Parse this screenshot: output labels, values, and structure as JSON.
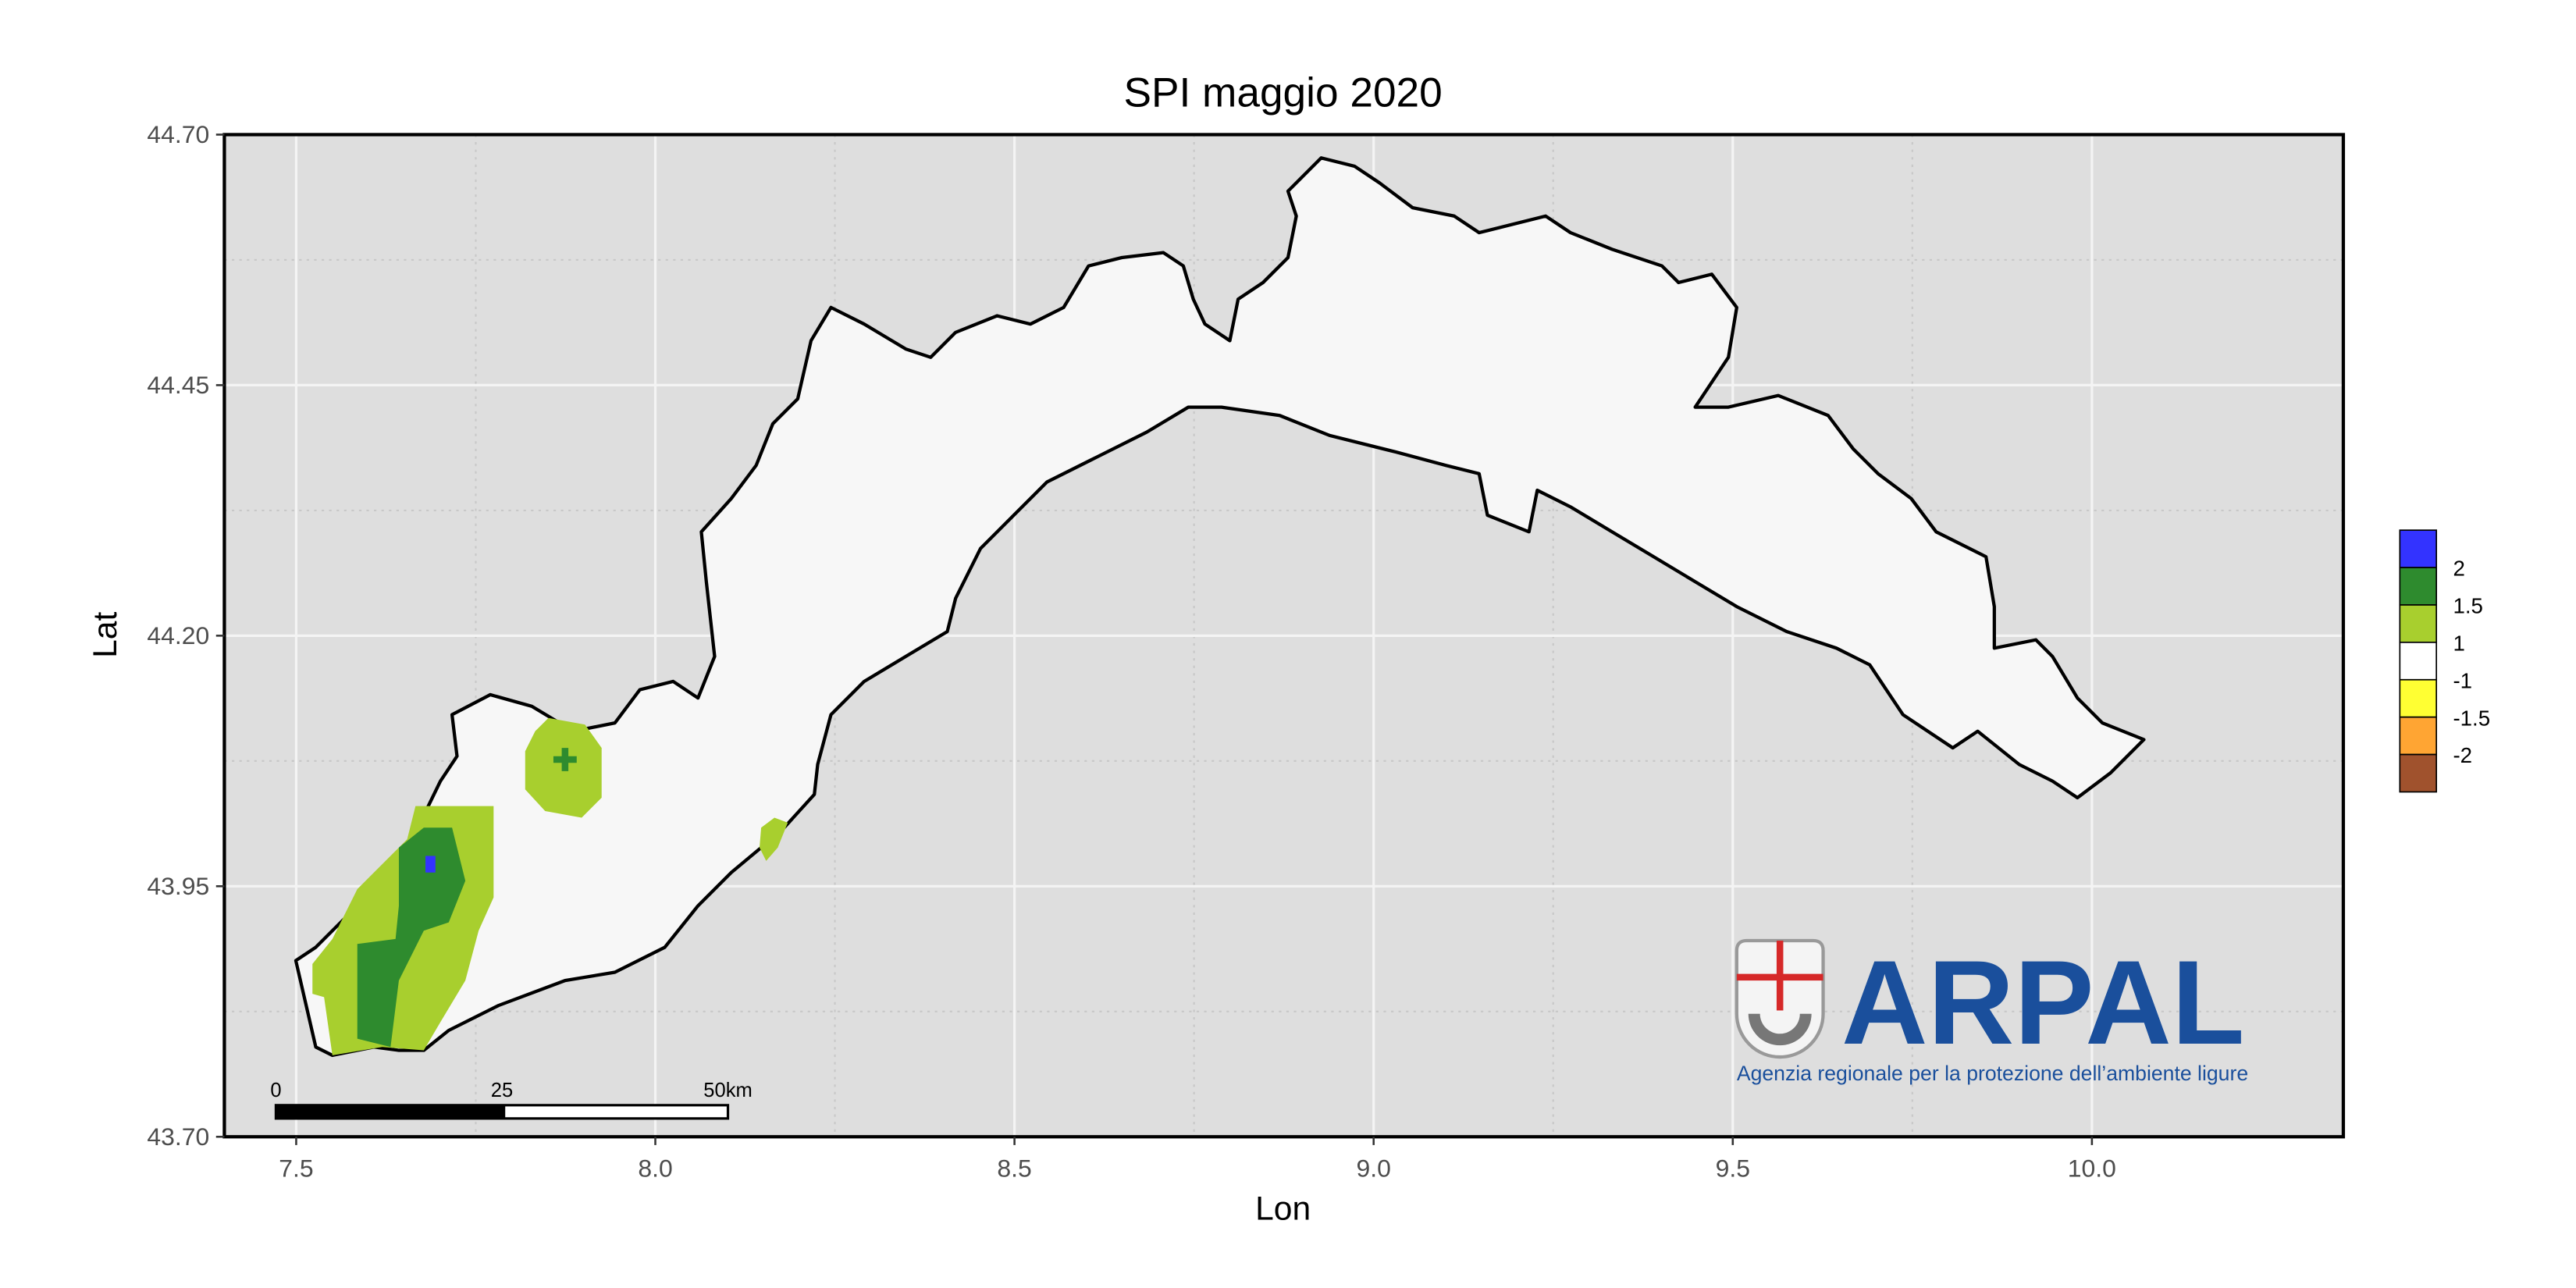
{
  "map": {
    "title": "SPI maggio 2020",
    "xlabel": "Lon",
    "ylabel": "Lat",
    "xlim": [
      7.4,
      10.35
    ],
    "ylim": [
      43.7,
      44.7
    ],
    "xticks": [
      7.5,
      {
        "value": 8,
        "label": "8.0"
      },
      8.5,
      {
        "value": 9,
        "label": "9.0"
      },
      9.5,
      {
        "value": 10,
        "label": "10.0"
      }
    ],
    "yticks": [
      {
        "value": 43.7,
        "label": "43.70"
      },
      {
        "value": 43.95,
        "label": "43.95"
      },
      {
        "value": 44.2,
        "label": "44.20"
      },
      {
        "value": 44.45,
        "label": "44.45"
      },
      {
        "value": 44.7,
        "label": "44.70"
      }
    ],
    "legend": {
      "colors": [
        "#3333ff",
        "#2e8b2e",
        "#a8cf2e",
        "#ffffff",
        "#ffff33",
        "#ffa533",
        "#a0522d"
      ],
      "breaks": [
        2,
        1.5,
        1,
        -1,
        -1.5,
        -2
      ]
    },
    "scalebar": [
      "0",
      "25",
      "50km"
    ],
    "logo": {
      "name": "ARPAL",
      "subtitle": "Agenzia regionale per la protezione dell’ambiente ligure"
    }
  }
}
